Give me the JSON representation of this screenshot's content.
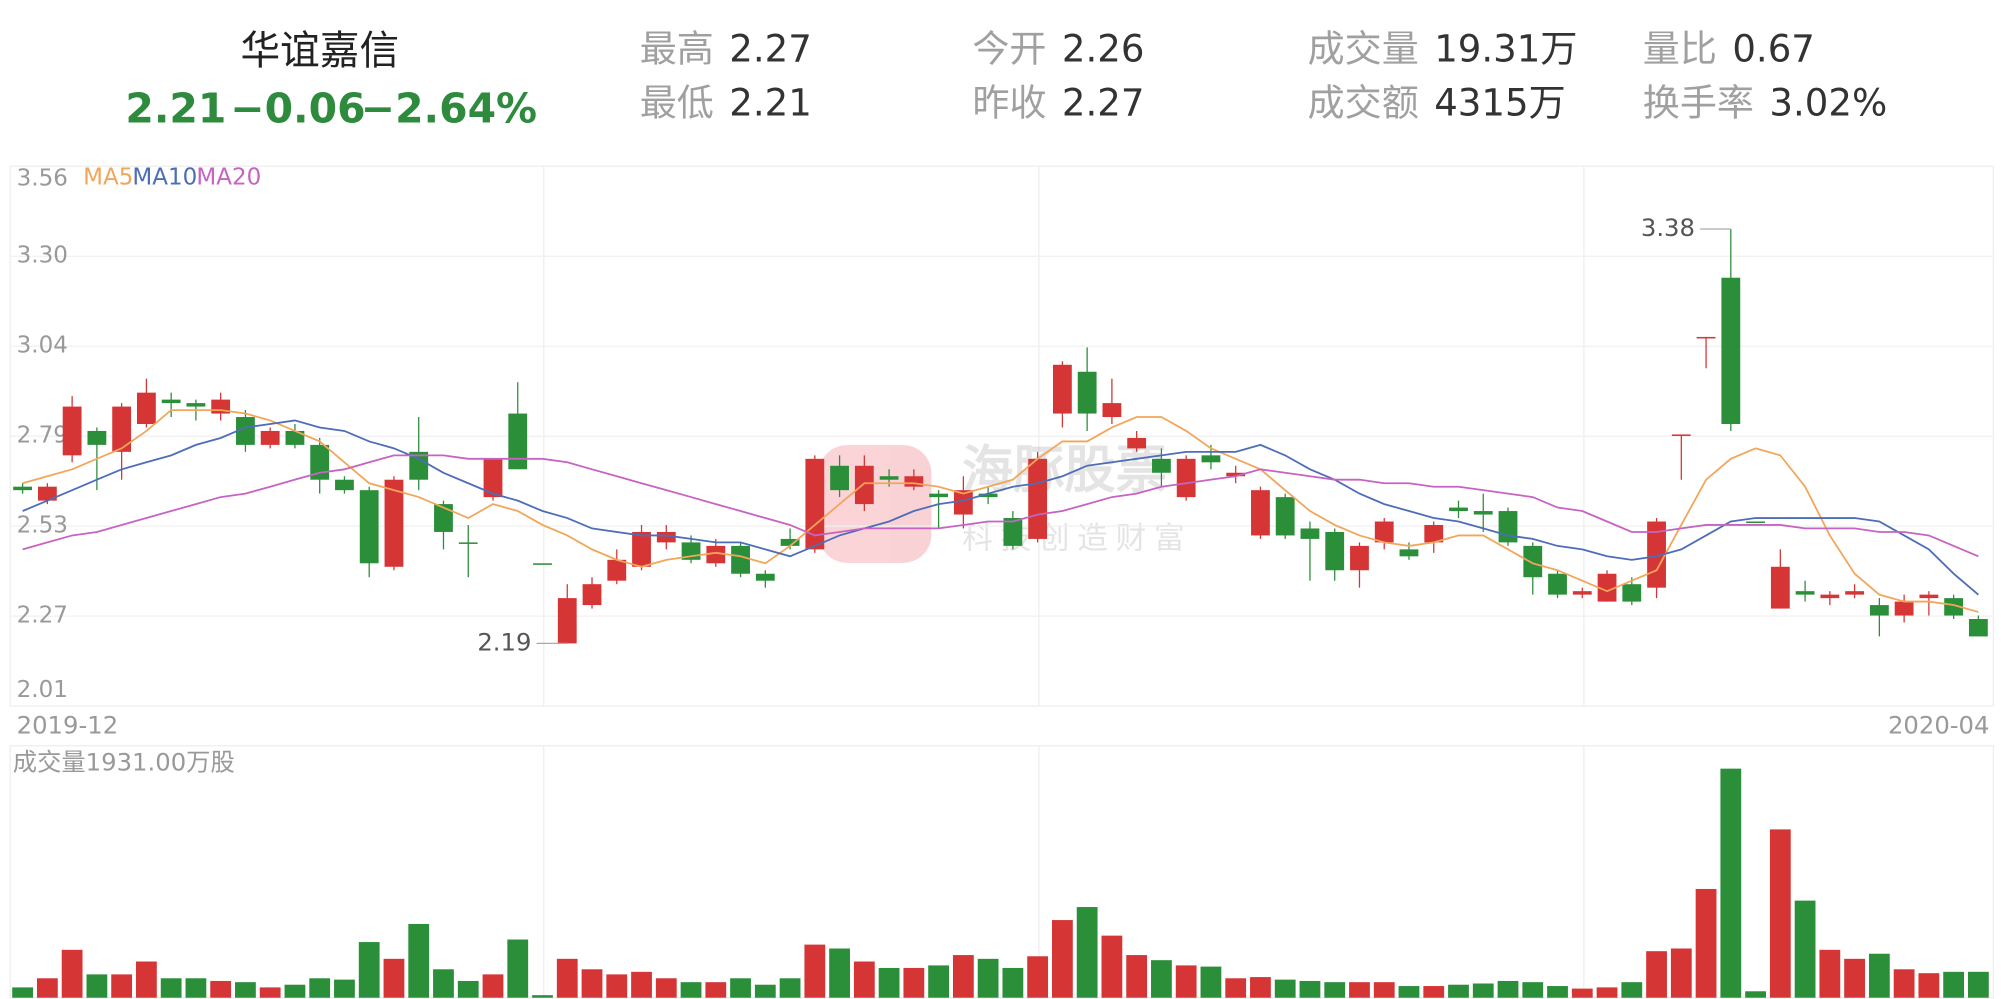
{
  "header": {
    "name": "华谊嘉信",
    "price": "2.21",
    "change": "−0.06",
    "change_pct": "−2.64%",
    "stats": [
      {
        "label": "最高",
        "value": "2.27"
      },
      {
        "label": "最低",
        "value": "2.21"
      },
      {
        "label": "今开",
        "value": "2.26"
      },
      {
        "label": "昨收",
        "value": "2.27"
      },
      {
        "label": "成交量",
        "value": "19.31万"
      },
      {
        "label": "成交额",
        "value": "4315万"
      },
      {
        "label": "量比",
        "value": "0.67"
      },
      {
        "label": "换手率",
        "value": "3.02%"
      }
    ]
  },
  "watermark": {
    "name": "海豚股票",
    "slogan": "科技创造财富"
  },
  "chart_data": {
    "type": "candlestick",
    "x_labels": [
      "2019-12",
      "2020-04"
    ],
    "up_color": "#d63535",
    "down_color": "#2b8f3a",
    "grid": true,
    "ylim": [
      2.01,
      3.56
    ],
    "yticks": [
      3.56,
      {
        "value": 3.3017,
        "label": "3.30"
      },
      {
        "value": 3.0433,
        "label": "3.04"
      },
      {
        "value": 2.785,
        "label": "2.79"
      },
      {
        "value": 2.5267,
        "label": "2.53"
      },
      {
        "value": 2.2683,
        "label": "2.27"
      },
      2.01
    ],
    "open": [
      2.64,
      2.6,
      2.73,
      2.8,
      2.74,
      2.82,
      2.89,
      2.88,
      2.85,
      2.84,
      2.76,
      2.8,
      2.76,
      2.66,
      2.63,
      2.41,
      2.74,
      2.59,
      2.48,
      2.61,
      2.85,
      2.42,
      2.19,
      2.3,
      2.37,
      2.41,
      2.48,
      2.48,
      2.42,
      2.47,
      2.39,
      2.49,
      2.46,
      2.7,
      2.59,
      2.67,
      2.64,
      2.62,
      2.56,
      2.62,
      2.55,
      2.49,
      2.85,
      2.97,
      2.84,
      2.75,
      2.72,
      2.61,
      2.73,
      2.67,
      2.5,
      2.61,
      2.52,
      2.51,
      2.4,
      2.48,
      2.46,
      2.48,
      2.58,
      2.57,
      2.57,
      2.47,
      2.39,
      2.33,
      2.31,
      2.36,
      2.35,
      2.79,
      3.07,
      3.24,
      2.54,
      2.29,
      2.34,
      2.32,
      2.33,
      2.3,
      2.27,
      2.32,
      2.32,
      2.26
    ],
    "high": [
      2.65,
      2.65,
      2.9,
      2.81,
      2.88,
      2.95,
      2.91,
      2.89,
      2.91,
      2.86,
      2.81,
      2.82,
      2.78,
      2.67,
      2.64,
      2.67,
      2.84,
      2.6,
      2.53,
      2.72,
      2.94,
      2.42,
      2.36,
      2.38,
      2.46,
      2.53,
      2.53,
      2.5,
      2.49,
      2.48,
      2.4,
      2.52,
      2.73,
      2.73,
      2.73,
      2.69,
      2.69,
      2.63,
      2.67,
      2.64,
      2.57,
      2.74,
      3.0,
      3.04,
      2.95,
      2.8,
      2.75,
      2.73,
      2.76,
      2.7,
      2.64,
      2.62,
      2.54,
      2.52,
      2.48,
      2.55,
      2.48,
      2.54,
      2.6,
      2.62,
      2.58,
      2.48,
      2.4,
      2.35,
      2.4,
      2.38,
      2.55,
      2.79,
      3.07,
      3.38,
      2.54,
      2.46,
      2.37,
      2.34,
      2.36,
      2.32,
      2.33,
      2.34,
      2.33,
      2.27
    ],
    "low": [
      2.62,
      2.59,
      2.71,
      2.63,
      2.66,
      2.81,
      2.84,
      2.83,
      2.83,
      2.74,
      2.75,
      2.75,
      2.62,
      2.62,
      2.38,
      2.4,
      2.63,
      2.46,
      2.38,
      2.6,
      2.69,
      2.42,
      2.19,
      2.29,
      2.36,
      2.4,
      2.46,
      2.42,
      2.41,
      2.38,
      2.35,
      2.46,
      2.45,
      2.61,
      2.57,
      2.64,
      2.63,
      2.52,
      2.52,
      2.59,
      2.46,
      2.48,
      2.81,
      2.8,
      2.82,
      2.74,
      2.64,
      2.6,
      2.69,
      2.65,
      2.49,
      2.49,
      2.37,
      2.37,
      2.35,
      2.46,
      2.43,
      2.45,
      2.55,
      2.51,
      2.47,
      2.33,
      2.32,
      2.32,
      2.31,
      2.3,
      2.32,
      2.66,
      2.98,
      2.8,
      2.54,
      2.29,
      2.31,
      2.3,
      2.32,
      2.21,
      2.25,
      2.27,
      2.26,
      2.21
    ],
    "close": [
      2.63,
      2.64,
      2.87,
      2.76,
      2.87,
      2.91,
      2.88,
      2.87,
      2.89,
      2.76,
      2.8,
      2.76,
      2.66,
      2.63,
      2.42,
      2.66,
      2.66,
      2.51,
      2.48,
      2.72,
      2.69,
      2.42,
      2.32,
      2.36,
      2.43,
      2.51,
      2.51,
      2.43,
      2.47,
      2.39,
      2.37,
      2.47,
      2.72,
      2.63,
      2.7,
      2.66,
      2.67,
      2.61,
      2.63,
      2.61,
      2.47,
      2.72,
      2.99,
      2.85,
      2.88,
      2.78,
      2.68,
      2.72,
      2.71,
      2.68,
      2.63,
      2.5,
      2.49,
      2.4,
      2.47,
      2.54,
      2.44,
      2.53,
      2.57,
      2.56,
      2.48,
      2.38,
      2.33,
      2.34,
      2.39,
      2.31,
      2.54,
      2.79,
      3.07,
      2.82,
      2.54,
      2.41,
      2.33,
      2.33,
      2.34,
      2.27,
      2.31,
      2.33,
      2.27,
      2.21
    ],
    "ma": [
      {
        "name": "MA5",
        "color": "#f2a65a",
        "values": [
          2.65,
          2.67,
          2.69,
          2.72,
          2.75,
          2.8,
          2.86,
          2.86,
          2.86,
          2.85,
          2.83,
          2.8,
          2.77,
          2.71,
          2.65,
          2.63,
          2.61,
          2.58,
          2.55,
          2.59,
          2.57,
          2.53,
          2.5,
          2.46,
          2.43,
          2.41,
          2.43,
          2.44,
          2.45,
          2.44,
          2.42,
          2.47,
          2.53,
          2.59,
          2.65,
          2.65,
          2.65,
          2.64,
          2.62,
          2.64,
          2.66,
          2.72,
          2.77,
          2.77,
          2.81,
          2.84,
          2.84,
          2.8,
          2.75,
          2.72,
          2.69,
          2.63,
          2.57,
          2.53,
          2.5,
          2.48,
          2.47,
          2.48,
          2.5,
          2.5,
          2.46,
          2.42,
          2.4,
          2.37,
          2.34,
          2.37,
          2.4,
          2.53,
          2.66,
          2.72,
          2.75,
          2.73,
          2.64,
          2.5,
          2.39,
          2.33,
          2.31,
          2.31,
          2.3,
          2.28
        ]
      },
      {
        "name": "MA10",
        "color": "#4d6db8",
        "values": [
          2.57,
          2.6,
          2.63,
          2.66,
          2.69,
          2.71,
          2.73,
          2.76,
          2.78,
          2.81,
          2.82,
          2.83,
          2.81,
          2.8,
          2.77,
          2.75,
          2.72,
          2.68,
          2.65,
          2.62,
          2.6,
          2.57,
          2.55,
          2.52,
          2.51,
          2.5,
          2.5,
          2.49,
          2.48,
          2.48,
          2.46,
          2.44,
          2.47,
          2.5,
          2.52,
          2.54,
          2.57,
          2.59,
          2.6,
          2.62,
          2.64,
          2.65,
          2.67,
          2.7,
          2.71,
          2.72,
          2.73,
          2.74,
          2.74,
          2.74,
          2.76,
          2.73,
          2.69,
          2.66,
          2.62,
          2.59,
          2.57,
          2.55,
          2.54,
          2.52,
          2.5,
          2.49,
          2.47,
          2.46,
          2.44,
          2.43,
          2.44,
          2.46,
          2.5,
          2.54,
          2.55,
          2.55,
          2.55,
          2.55,
          2.55,
          2.54,
          2.5,
          2.46,
          2.39,
          2.33
        ]
      },
      {
        "name": "MA20",
        "color": "#c763c2",
        "values": [
          2.46,
          2.48,
          2.5,
          2.51,
          2.53,
          2.55,
          2.57,
          2.59,
          2.61,
          2.62,
          2.64,
          2.66,
          2.68,
          2.69,
          2.71,
          2.73,
          2.73,
          2.73,
          2.72,
          2.72,
          2.72,
          2.72,
          2.71,
          2.69,
          2.67,
          2.65,
          2.63,
          2.61,
          2.59,
          2.57,
          2.55,
          2.53,
          2.5,
          2.51,
          2.52,
          2.52,
          2.52,
          2.52,
          2.53,
          2.54,
          2.54,
          2.56,
          2.57,
          2.59,
          2.61,
          2.62,
          2.64,
          2.65,
          2.66,
          2.67,
          2.69,
          2.68,
          2.67,
          2.66,
          2.66,
          2.65,
          2.65,
          2.64,
          2.64,
          2.63,
          2.62,
          2.61,
          2.58,
          2.57,
          2.54,
          2.51,
          2.51,
          2.52,
          2.53,
          2.53,
          2.53,
          2.53,
          2.52,
          2.52,
          2.52,
          2.51,
          2.51,
          2.5,
          2.47,
          2.44
        ]
      }
    ],
    "max_label": {
      "value": 3.38,
      "label": "3.38"
    },
    "min_label": {
      "value": 2.19,
      "label": "2.19"
    },
    "volume": {
      "title": "成交量1931.00万股",
      "values": [
        770,
        1450,
        3570,
        1740,
        1740,
        2700,
        1450,
        1450,
        1250,
        1160,
        770,
        970,
        1450,
        1350,
        4150,
        2900,
        5500,
        2120,
        1250,
        1740,
        4340,
        190,
        2900,
        2120,
        1740,
        1930,
        1450,
        1160,
        1160,
        1450,
        970,
        1450,
        3960,
        3670,
        2700,
        2220,
        2220,
        2410,
        3180,
        2900,
        2220,
        3090,
        5790,
        6760,
        4630,
        3180,
        2800,
        2410,
        2320,
        1450,
        1540,
        1350,
        1250,
        1160,
        1160,
        1160,
        870,
        870,
        970,
        1060,
        1250,
        1160,
        870,
        680,
        770,
        1160,
        3470,
        3670,
        8110,
        17080,
        480,
        12550,
        7240,
        3570,
        2900,
        3280,
        2120,
        1830,
        1930,
        1931
      ]
    }
  }
}
